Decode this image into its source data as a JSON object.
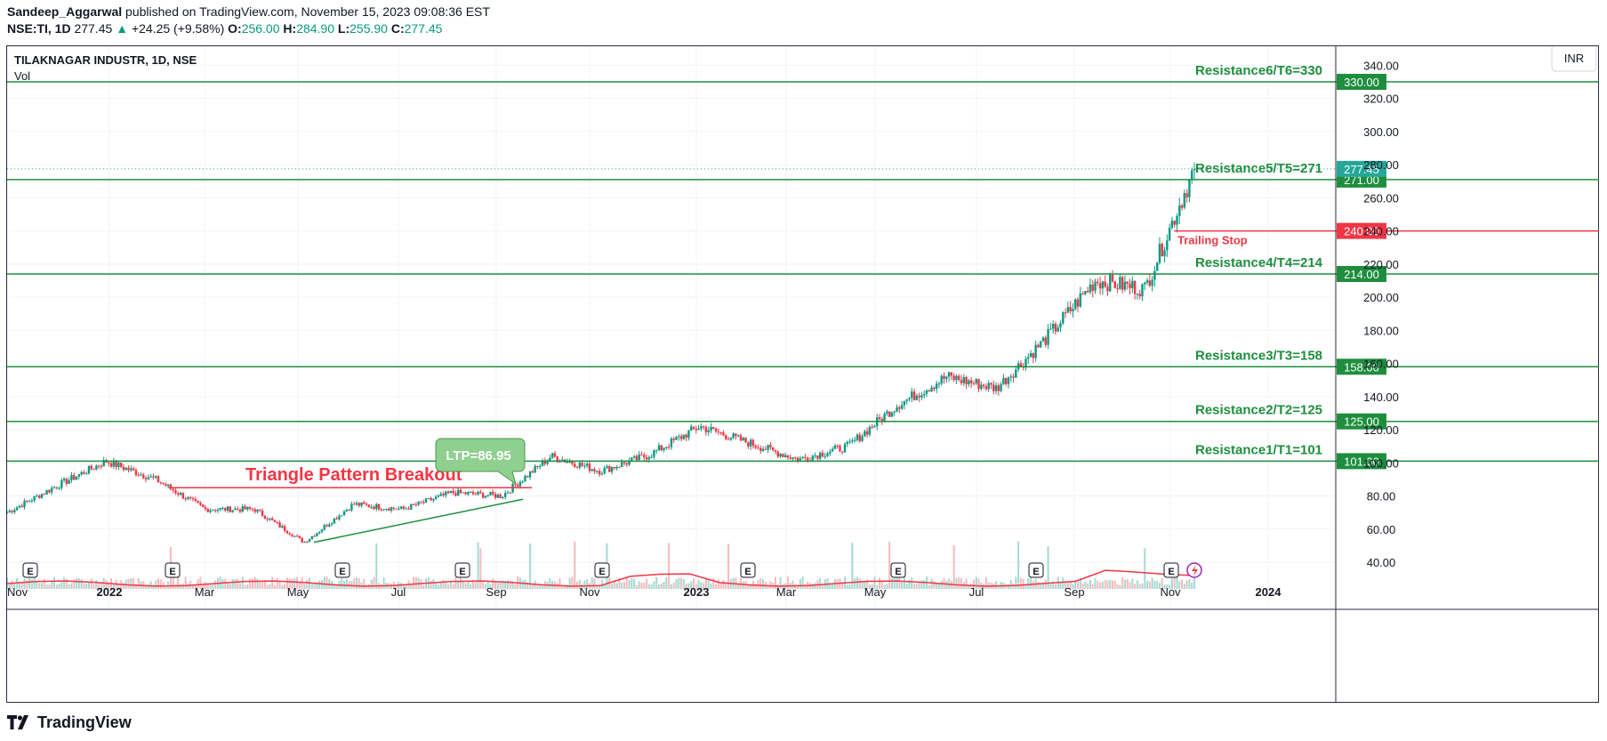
{
  "header": {
    "author": "Sandeep_Aggarwal",
    "published": "published on TradingView.com, November 15, 2023 09:08:36 EST",
    "symbol": "NSE:TI, 1D",
    "last": "277.45",
    "change": "+24.25 (+9.58%)",
    "o_label": "O:",
    "o": "256.00",
    "h_label": "H:",
    "h": "284.90",
    "l_label": "L:",
    "l": "255.90",
    "c_label": "C:",
    "c": "277.45"
  },
  "legend": {
    "title": "TILAKNAGAR INDUSTR, 1D, NSE",
    "vol": "Vol"
  },
  "currency": "INR",
  "logo_text": "TradingView",
  "colors": {
    "up": "#089981",
    "down": "#f23645",
    "level": "#1e8e3e",
    "stop": "#f23645",
    "last": "#26a69a"
  },
  "chart_data": {
    "type": "candlestick",
    "title": "TILAKNAGAR INDUSTR, 1D, NSE",
    "ylim": [
      28,
      352
    ],
    "y_ticks": [
      40,
      60,
      80,
      100,
      120,
      140,
      160,
      180,
      200,
      220,
      240,
      260,
      280,
      300,
      320,
      340
    ],
    "y_tick_labels": [
      "40.00",
      "60.00",
      "80.00",
      "100.00",
      "120.00",
      "140.00",
      "160.00",
      "180.00",
      "200.00",
      "220.00",
      "240.00",
      "260.00",
      "280.00",
      "300.00",
      "320.00",
      "340.00"
    ],
    "x_ticks": [
      "Nov",
      "2022",
      "Mar",
      "May",
      "Jul",
      "Sep",
      "Nov",
      "2023",
      "Mar",
      "May",
      "Jul",
      "Sep",
      "Nov",
      "2024"
    ],
    "price_path": [
      [
        "Nov 2021",
        70
      ],
      [
        "Dec 2021",
        86
      ],
      [
        "Jan 2022",
        101
      ],
      [
        "Feb 2022",
        90
      ],
      [
        "Mar 2022",
        72
      ],
      [
        "Apr 2022",
        72
      ],
      [
        "May 2022",
        52
      ],
      [
        "Jun 2022",
        75
      ],
      [
        "Jul 2022",
        72
      ],
      [
        "Aug 2022",
        82
      ],
      [
        "Sep 2022",
        80
      ],
      [
        "Oct 2022",
        104
      ],
      [
        "Nov 2022",
        95
      ],
      [
        "Dec 2022",
        105
      ],
      [
        "Jan 2023",
        122
      ],
      [
        "Feb 2023",
        112
      ],
      [
        "Mar 2023",
        102
      ],
      [
        "Apr 2023",
        110
      ],
      [
        "May 2023",
        135
      ],
      [
        "Jun 2023",
        152
      ],
      [
        "Jul 2023",
        145
      ],
      [
        "Aug 2023",
        175
      ],
      [
        "Sep 2023",
        210
      ],
      [
        "Oct 2023",
        205
      ],
      [
        "Nov 2023",
        277.45
      ]
    ],
    "levels": [
      {
        "label": "Resistance6/T6=330",
        "value": 330,
        "tag": "330.00"
      },
      {
        "label": "Resistance5/T5=271",
        "value": 271,
        "tag": "271.00"
      },
      {
        "label": "Resistance4/T4=214",
        "value": 214,
        "tag": "214.00"
      },
      {
        "label": "Resistance3/T3=158",
        "value": 158,
        "tag": "158.00"
      },
      {
        "label": "Resistance2/T2=125",
        "value": 125,
        "tag": "125.00"
      },
      {
        "label": "Resistance1/T1=101",
        "value": 101,
        "tag": "101.00"
      }
    ],
    "trailing_stop": {
      "label": "Trailing Stop",
      "value": 240,
      "tag": "240.00"
    },
    "last_price": {
      "value": 277.45,
      "tag": "277.45"
    },
    "annotations": {
      "pattern": "Triangle Pattern Breakout",
      "ltp": "LTP=86.95",
      "resistance_line_value": 85,
      "support_line": [
        52,
        78
      ]
    },
    "earnings_marker": "E"
  }
}
